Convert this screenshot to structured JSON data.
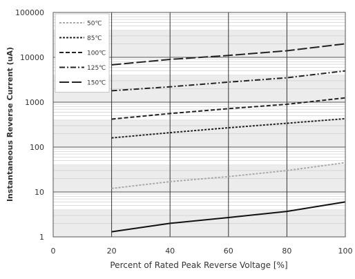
{
  "chart_data": {
    "type": "line",
    "xlabel": "Percent of  Rated Peak Reverse Voltage [%]",
    "ylabel": "Instantaneous Reverse Current (uA)",
    "xlim": [
      0,
      100
    ],
    "ylim": [
      1,
      100000
    ],
    "yscale": "log",
    "grid": true,
    "legend_position": "top-left",
    "x_ticks": [
      "0",
      "20",
      "40",
      "60",
      "80",
      "100"
    ],
    "y_ticks": [
      "1",
      "10",
      "100",
      "1000",
      "10000",
      "100000"
    ],
    "series": [
      {
        "name": "",
        "x": [
          20,
          40,
          60,
          80,
          100
        ],
        "values": [
          1.3,
          2.0,
          2.7,
          3.7,
          6.0
        ],
        "color": "#111111",
        "dash": ""
      },
      {
        "name": "50℃",
        "x": [
          20,
          40,
          60,
          80,
          100
        ],
        "values": [
          12,
          17,
          22,
          30,
          45
        ],
        "color": "#aaaaaa",
        "dash": "3,2"
      },
      {
        "name": "85℃",
        "x": [
          20,
          40,
          60,
          80,
          100
        ],
        "values": [
          160,
          210,
          270,
          340,
          430
        ],
        "color": "#222222",
        "dash": "3,2"
      },
      {
        "name": "100℃",
        "x": [
          20,
          40,
          60,
          80,
          100
        ],
        "values": [
          420,
          560,
          720,
          900,
          1250
        ],
        "color": "#222222",
        "dash": "6,3"
      },
      {
        "name": "125℃",
        "x": [
          20,
          40,
          60,
          80,
          100
        ],
        "values": [
          1800,
          2200,
          2800,
          3500,
          5000
        ],
        "color": "#222222",
        "dash": "8,3,2,3"
      },
      {
        "name": "150℃",
        "x": [
          20,
          40,
          60,
          80,
          100
        ],
        "values": [
          6800,
          9000,
          11000,
          14000,
          20000
        ],
        "color": "#222222",
        "dash": "14,4"
      }
    ]
  }
}
